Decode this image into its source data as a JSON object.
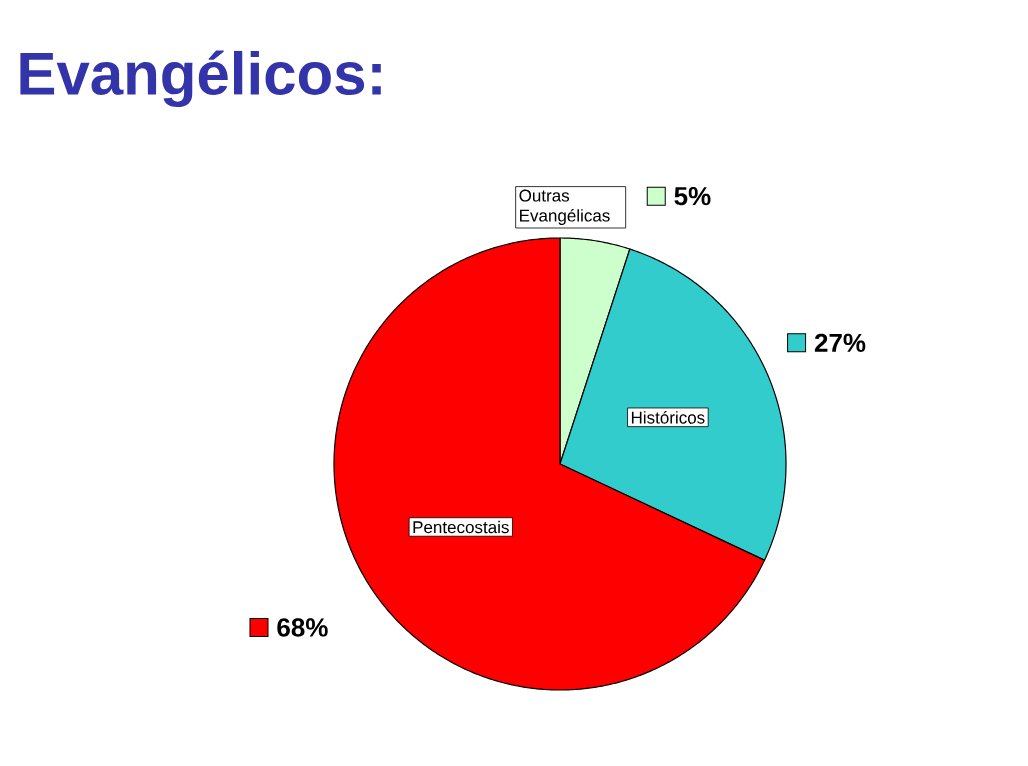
{
  "chart_data": {
    "type": "pie",
    "title": "Evangélicos:",
    "categories": [
      "Outras Evangélicas",
      "Históricos",
      "Pentecostais"
    ],
    "values": [
      5,
      27,
      68
    ],
    "colors": [
      "#ccffcc",
      "#33cccc",
      "#ff0000"
    ],
    "value_labels": [
      "5%",
      "27%",
      "68%"
    ]
  }
}
